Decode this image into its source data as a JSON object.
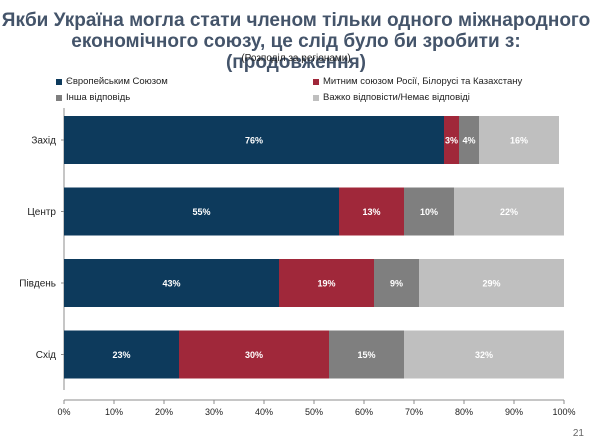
{
  "colors": {
    "title": "#44546a",
    "series": [
      "#0d3a5c",
      "#a0283a",
      "#7f7f7f",
      "#bfbfbf"
    ]
  },
  "page_number": "21",
  "chart_data": {
    "type": "bar",
    "orientation": "horizontal",
    "stacked": true,
    "title": "Якби Україна могла стати членом тільки одного міжнародного економічного союзу, це слід було би зробити з: (продовження)",
    "subtitle": "(Розподіл за регіонами)",
    "categories": [
      "Захід",
      "Центр",
      "Південь",
      "Схід"
    ],
    "series": [
      {
        "name": "Європейським Союзом",
        "values": [
          76,
          55,
          43,
          23
        ]
      },
      {
        "name": "Митним союзом Росії, Білорусі та Казахстану",
        "values": [
          3,
          13,
          19,
          30
        ]
      },
      {
        "name": "Інша відповідь",
        "values": [
          4,
          10,
          9,
          15
        ]
      },
      {
        "name": "Важко відповісти/Немає відповіді",
        "values": [
          16,
          22,
          29,
          32
        ]
      }
    ],
    "xlim": [
      0,
      100
    ],
    "xticks": [
      "0%",
      "10%",
      "20%",
      "30%",
      "40%",
      "50%",
      "60%",
      "70%",
      "80%",
      "90%",
      "100%"
    ],
    "value_suffix": "%",
    "grid": false,
    "legend_position": "top"
  }
}
